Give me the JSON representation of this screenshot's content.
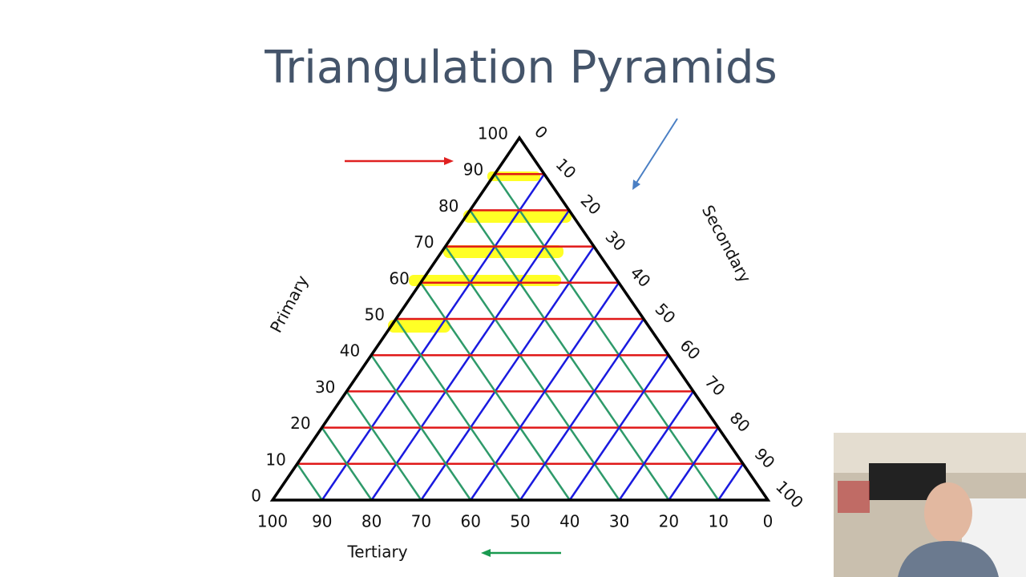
{
  "title": "Triangulation Pyramids",
  "axes": {
    "primary": {
      "label": "Primary",
      "ticks": [
        0,
        10,
        20,
        30,
        40,
        50,
        60,
        70,
        80,
        90,
        100
      ]
    },
    "secondary": {
      "label": "Secondary",
      "ticks": [
        0,
        10,
        20,
        30,
        40,
        50,
        60,
        70,
        80,
        90,
        100
      ]
    },
    "tertiary": {
      "label": "Tertiary",
      "ticks": [
        100,
        90,
        80,
        70,
        60,
        50,
        40,
        30,
        20,
        10,
        0
      ]
    }
  }
}
